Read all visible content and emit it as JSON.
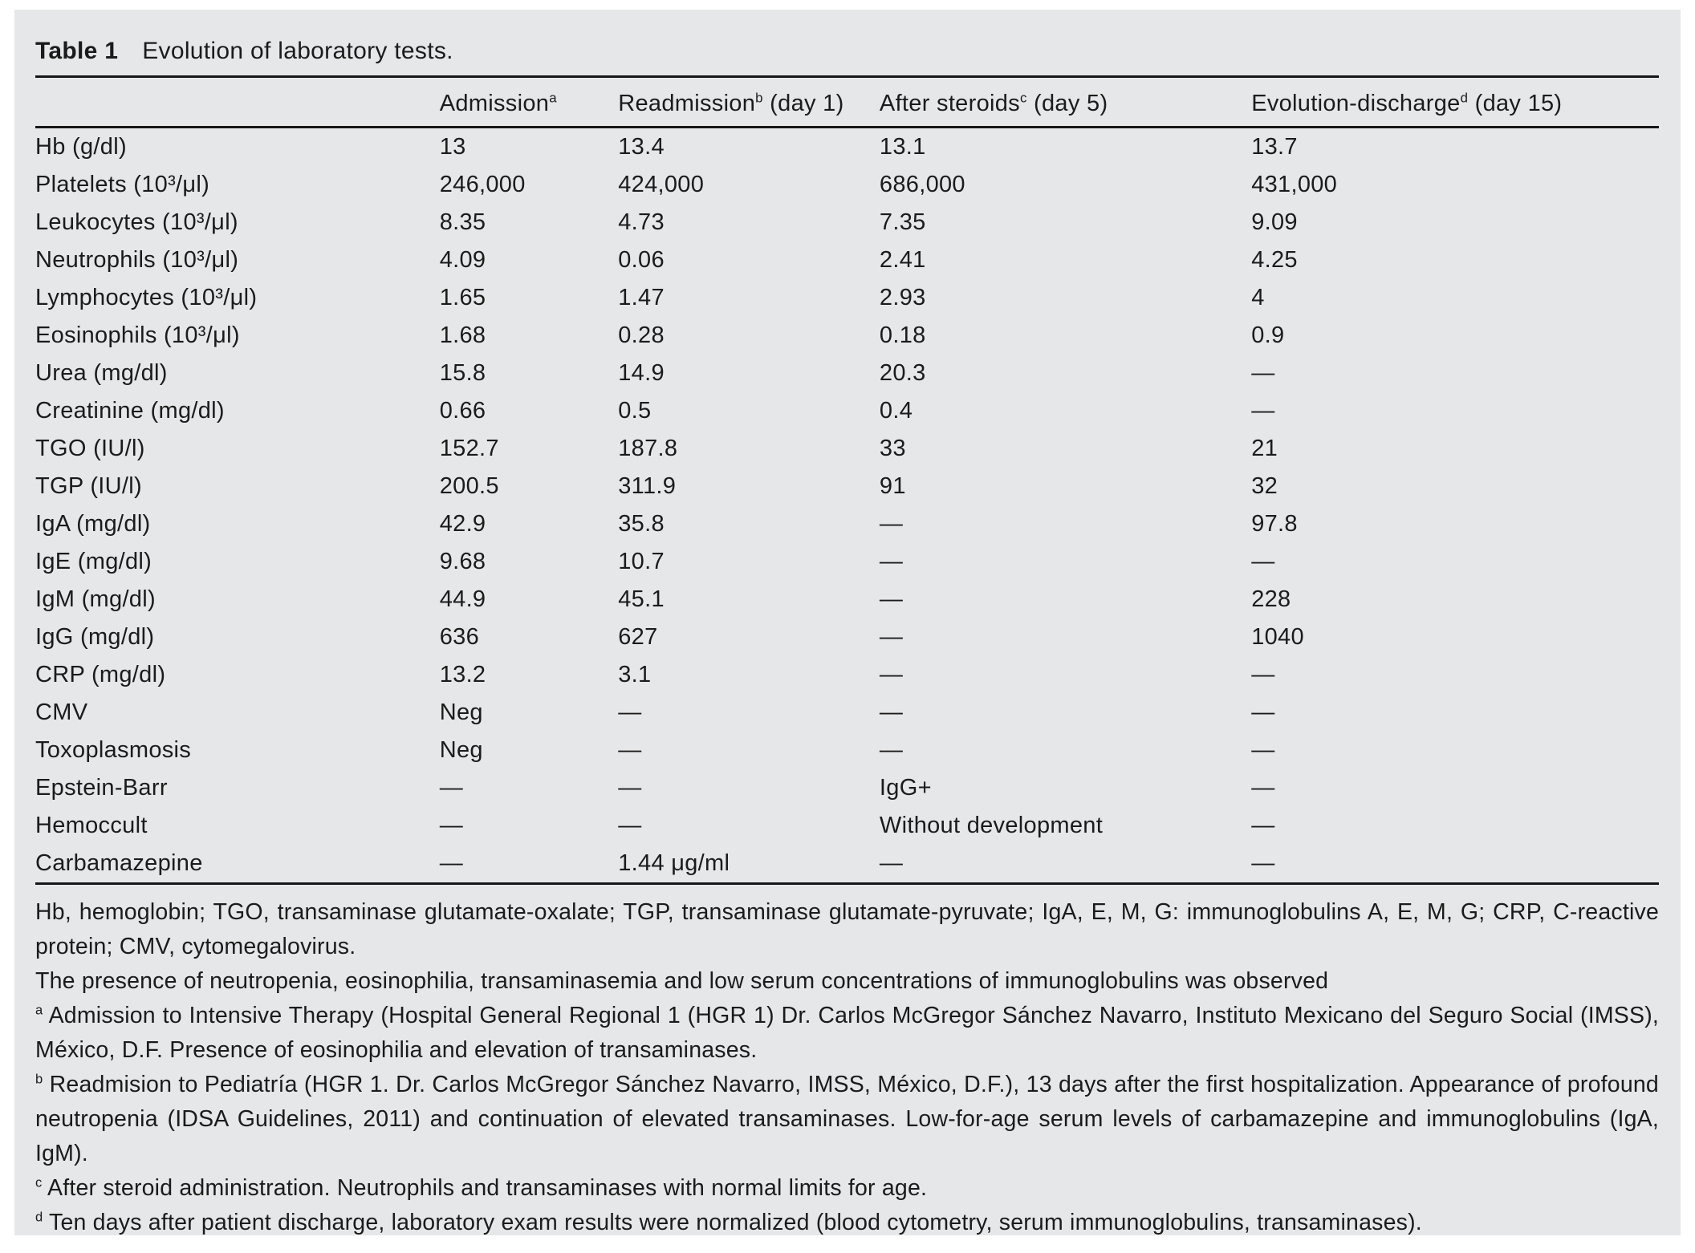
{
  "title": {
    "label": "Table 1",
    "caption": "Evolution of laboratory tests."
  },
  "table": {
    "columns": [
      {
        "text": "",
        "sup": "",
        "rest": ""
      },
      {
        "text": "Admission",
        "sup": "a",
        "rest": ""
      },
      {
        "text": "Readmission",
        "sup": "b",
        "rest": " (day 1)"
      },
      {
        "text": "After steroids",
        "sup": "c",
        "rest": " (day 5)"
      },
      {
        "text": "Evolution-discharge",
        "sup": "d",
        "rest": " (day 15)"
      }
    ],
    "rows": [
      {
        "label": "Hb (g/dl)",
        "values": [
          "13",
          "13.4",
          "13.1",
          "13.7"
        ]
      },
      {
        "label": "Platelets (10³/μl)",
        "values": [
          "246,000",
          "424,000",
          "686,000",
          "431,000"
        ]
      },
      {
        "label": "Leukocytes (10³/μl)",
        "values": [
          "8.35",
          "4.73",
          "7.35",
          "9.09"
        ]
      },
      {
        "label": "Neutrophils (10³/μl)",
        "values": [
          "4.09",
          "0.06",
          "2.41",
          "4.25"
        ]
      },
      {
        "label": "Lymphocytes (10³/μl)",
        "values": [
          "1.65",
          "1.47",
          "2.93",
          "4"
        ]
      },
      {
        "label": "Eosinophils (10³/μl)",
        "values": [
          "1.68",
          "0.28",
          "0.18",
          "0.9"
        ]
      },
      {
        "label": "Urea (mg/dl)",
        "values": [
          "15.8",
          "14.9",
          "20.3",
          "—"
        ]
      },
      {
        "label": "Creatinine (mg/dl)",
        "values": [
          "0.66",
          "0.5",
          "0.4",
          "—"
        ]
      },
      {
        "label": "TGO (IU/l)",
        "values": [
          "152.7",
          "187.8",
          "33",
          "21"
        ]
      },
      {
        "label": "TGP (IU/l)",
        "values": [
          "200.5",
          "311.9",
          "91",
          "32"
        ]
      },
      {
        "label": "IgA (mg/dl)",
        "values": [
          "42.9",
          "35.8",
          "—",
          "97.8"
        ]
      },
      {
        "label": "IgE (mg/dl)",
        "values": [
          "9.68",
          "10.7",
          "—",
          "—"
        ]
      },
      {
        "label": "IgM (mg/dl)",
        "values": [
          "44.9",
          "45.1",
          "—",
          "228"
        ]
      },
      {
        "label": "IgG (mg/dl)",
        "values": [
          "636",
          "627",
          "—",
          "1040"
        ]
      },
      {
        "label": "CRP (mg/dl)",
        "values": [
          "13.2",
          "3.1",
          "—",
          "—"
        ]
      },
      {
        "label": "CMV",
        "values": [
          "Neg",
          "—",
          "—",
          "—"
        ]
      },
      {
        "label": "Toxoplasmosis",
        "values": [
          "Neg",
          "—",
          "—",
          "—"
        ]
      },
      {
        "label": "Epstein-Barr",
        "values": [
          "—",
          "—",
          "IgG+",
          "—"
        ]
      },
      {
        "label": "Hemoccult",
        "values": [
          "—",
          "—",
          "Without development",
          "—"
        ]
      },
      {
        "label": "Carbamazepine",
        "values": [
          "—",
          "1.44 μg/ml",
          "—",
          "—"
        ]
      }
    ]
  },
  "footnotes": [
    {
      "marker": "",
      "text": "Hb, hemoglobin; TGO, transaminase glutamate-oxalate; TGP, transaminase glutamate-pyruvate; IgA, E, M, G: immunoglobulins A, E, M, G; CRP, C-reactive protein; CMV, cytomegalovirus."
    },
    {
      "marker": "",
      "text": "The presence of neutropenia, eosinophilia, transaminasemia and low serum concentrations of immunoglobulins was observed"
    },
    {
      "marker": "a",
      "text": "Admission to Intensive Therapy (Hospital General Regional 1 (HGR 1) Dr. Carlos McGregor Sánchez Navarro, Instituto Mexicano del Seguro Social (IMSS), México, D.F. Presence of eosinophilia and elevation of transaminases."
    },
    {
      "marker": "b",
      "text": "Readmision to Pediatría (HGR 1. Dr. Carlos McGregor Sánchez Navarro, IMSS, México, D.F.), 13 days after the first hospitalization. Appearance of profound neutropenia (IDSA Guidelines, 2011) and continuation of elevated transaminases. Low-for-age serum levels of carbamazepine and immunoglobulins (IgA, IgM)."
    },
    {
      "marker": "c",
      "text": "After steroid administration. Neutrophils and transaminases with normal limits for age."
    },
    {
      "marker": "d",
      "text": "Ten days after patient discharge, laboratory exam results were normalized (blood cytometry, serum immunoglobulins, transaminases)."
    }
  ],
  "colors": {
    "panel_bg": "#e6e7e8",
    "text": "#1b1b1b",
    "rule": "#161616"
  }
}
